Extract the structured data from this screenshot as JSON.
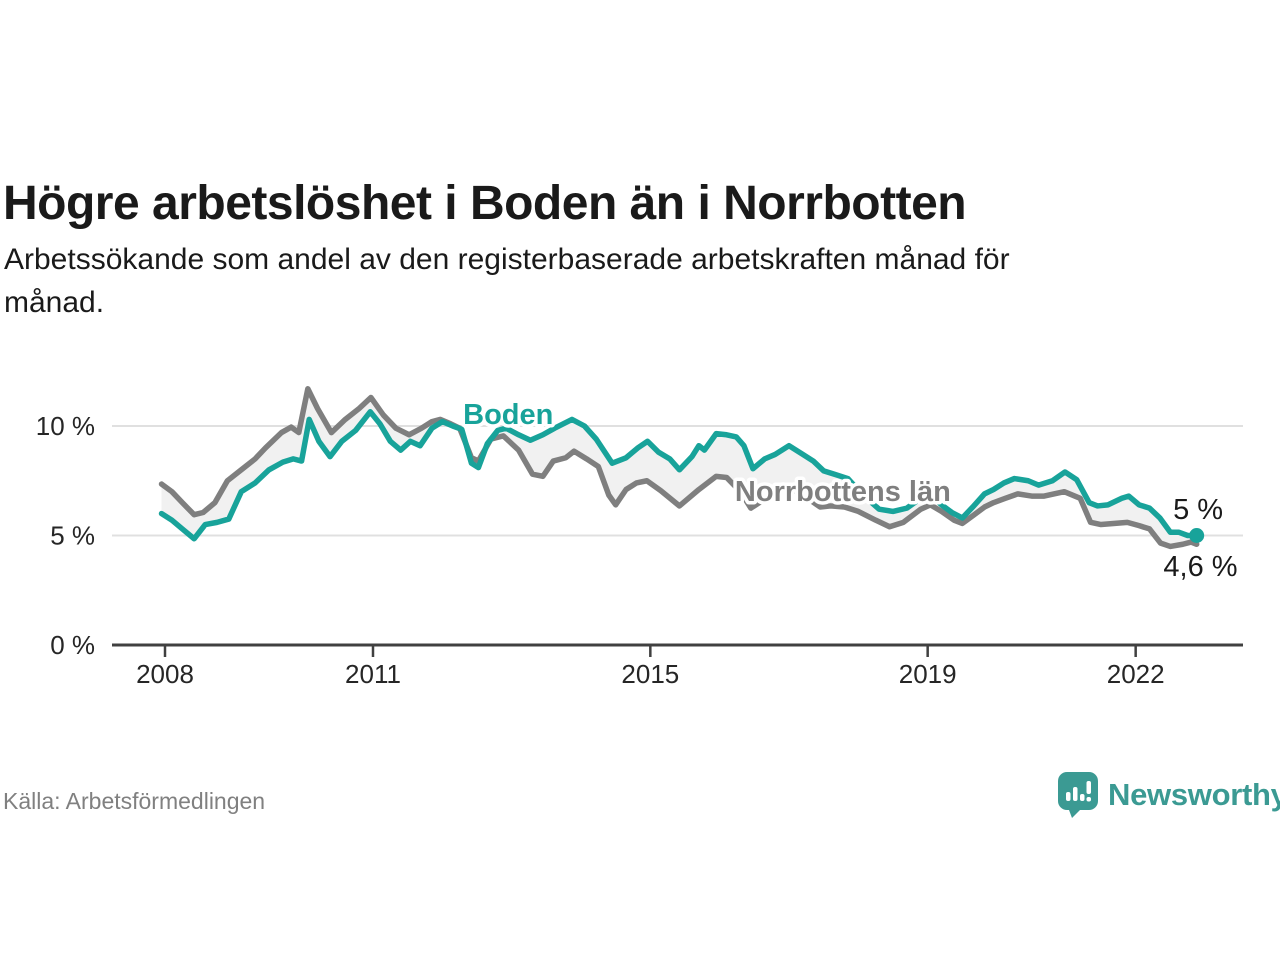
{
  "title": "Högre arbetslöshet i Boden än i Norrbotten",
  "subtitle": {
    "line1": "Arbetssökande som andel av den registerbaserade arbetskraften månad för",
    "line2": "månad."
  },
  "source": "Källa: Arbetsförmedlingen",
  "logo": {
    "text": "Newsworthy",
    "icon": "newsworthy-speech-bubble-bars-icon",
    "color": "#3b9a93"
  },
  "colors": {
    "boden_line": "#18a39a",
    "norrbotten_line": "#7f7f7f",
    "band_fill": "#f1f1f1",
    "gridline": "#e0e0e0",
    "axis": "#404040",
    "text": "#1a1a1a",
    "muted_text": "#808080"
  },
  "chart_data": {
    "type": "line",
    "title": "Högre arbetslöshet i Boden än i Norrbotten",
    "subtitle": "Arbetssökande som andel av den registerbaserade arbetskraften månad för månad.",
    "x_unit": "decimal_year",
    "xlim": [
      2007.9,
      2023.2
    ],
    "ylim": [
      0,
      12
    ],
    "grid": "horizontal",
    "legend_position": "inline-labels",
    "yticks": [
      {
        "value": 0,
        "label": "0 %"
      },
      {
        "value": 5,
        "label": "5 %"
      },
      {
        "value": 10,
        "label": "10 %"
      }
    ],
    "xticks": [
      {
        "value": 2008,
        "label": "2008"
      },
      {
        "value": 2011,
        "label": "2011"
      },
      {
        "value": 2015,
        "label": "2015"
      },
      {
        "value": 2019,
        "label": "2019"
      },
      {
        "value": 2022,
        "label": "2022"
      }
    ],
    "annotations": [
      {
        "text": "Boden",
        "year": 2012.3,
        "value": 10.09,
        "class": "label-boden",
        "name": "series-label-boden"
      },
      {
        "text": "Norrbottens län",
        "year": 2016.22,
        "value": 6.57,
        "class": "label-norrbotten",
        "name": "series-label-norrbotten"
      },
      {
        "text": "5 %",
        "year": 2022.54,
        "value": 5.75,
        "class": "label-end",
        "name": "end-value-label-boden"
      },
      {
        "text": "4,6 %",
        "year": 2022.4,
        "value": 3.15,
        "class": "label-end",
        "name": "end-value-label-norrbotten"
      }
    ],
    "end_dot": {
      "series": "Boden",
      "year": 2022.88,
      "value": 5.0,
      "color": "#18a39a",
      "radius": 7.5
    },
    "series": [
      {
        "name": "Boden",
        "color": "#18a39a",
        "end_value_label": "5 %",
        "points": [
          [
            2007.95,
            6.0
          ],
          [
            2008.1,
            5.7
          ],
          [
            2008.25,
            5.3
          ],
          [
            2008.42,
            4.85
          ],
          [
            2008.58,
            5.5
          ],
          [
            2008.75,
            5.6
          ],
          [
            2008.92,
            5.75
          ],
          [
            2009.1,
            7.0
          ],
          [
            2009.3,
            7.4
          ],
          [
            2009.5,
            8.0
          ],
          [
            2009.7,
            8.35
          ],
          [
            2009.85,
            8.5
          ],
          [
            2009.97,
            8.4
          ],
          [
            2010.08,
            10.3
          ],
          [
            2010.22,
            9.3
          ],
          [
            2010.38,
            8.6
          ],
          [
            2010.55,
            9.3
          ],
          [
            2010.75,
            9.8
          ],
          [
            2010.96,
            10.65
          ],
          [
            2011.1,
            10.1
          ],
          [
            2011.25,
            9.3
          ],
          [
            2011.4,
            8.9
          ],
          [
            2011.54,
            9.3
          ],
          [
            2011.68,
            9.1
          ],
          [
            2011.85,
            9.9
          ],
          [
            2012.0,
            10.2
          ],
          [
            2012.15,
            10.0
          ],
          [
            2012.28,
            9.85
          ],
          [
            2012.42,
            8.3
          ],
          [
            2012.52,
            8.1
          ],
          [
            2012.65,
            9.2
          ],
          [
            2012.8,
            9.8
          ],
          [
            2012.92,
            9.9
          ],
          [
            2013.1,
            9.6
          ],
          [
            2013.27,
            9.35
          ],
          [
            2013.45,
            9.6
          ],
          [
            2013.62,
            9.9
          ],
          [
            2013.87,
            10.3
          ],
          [
            2014.05,
            10.0
          ],
          [
            2014.22,
            9.4
          ],
          [
            2014.45,
            8.3
          ],
          [
            2014.65,
            8.55
          ],
          [
            2014.82,
            9.0
          ],
          [
            2014.96,
            9.3
          ],
          [
            2015.12,
            8.8
          ],
          [
            2015.28,
            8.5
          ],
          [
            2015.42,
            8.0
          ],
          [
            2015.6,
            8.6
          ],
          [
            2015.7,
            9.1
          ],
          [
            2015.78,
            8.9
          ],
          [
            2015.95,
            9.65
          ],
          [
            2016.1,
            9.6
          ],
          [
            2016.24,
            9.5
          ],
          [
            2016.35,
            9.1
          ],
          [
            2016.48,
            8.05
          ],
          [
            2016.65,
            8.5
          ],
          [
            2016.8,
            8.7
          ],
          [
            2017.0,
            9.1
          ],
          [
            2017.2,
            8.7
          ],
          [
            2017.35,
            8.4
          ],
          [
            2017.5,
            7.95
          ],
          [
            2017.65,
            7.8
          ],
          [
            2017.85,
            7.6
          ],
          [
            2018.05,
            6.9
          ],
          [
            2018.3,
            6.2
          ],
          [
            2018.5,
            6.1
          ],
          [
            2018.7,
            6.25
          ],
          [
            2018.9,
            6.7
          ],
          [
            2019.04,
            6.85
          ],
          [
            2019.2,
            6.4
          ],
          [
            2019.35,
            6.05
          ],
          [
            2019.5,
            5.8
          ],
          [
            2019.65,
            6.3
          ],
          [
            2019.82,
            6.9
          ],
          [
            2019.95,
            7.1
          ],
          [
            2020.1,
            7.4
          ],
          [
            2020.25,
            7.6
          ],
          [
            2020.45,
            7.5
          ],
          [
            2020.6,
            7.3
          ],
          [
            2020.8,
            7.5
          ],
          [
            2020.98,
            7.9
          ],
          [
            2021.15,
            7.55
          ],
          [
            2021.33,
            6.5
          ],
          [
            2021.45,
            6.35
          ],
          [
            2021.6,
            6.4
          ],
          [
            2021.8,
            6.7
          ],
          [
            2021.9,
            6.8
          ],
          [
            2022.05,
            6.4
          ],
          [
            2022.2,
            6.25
          ],
          [
            2022.35,
            5.8
          ],
          [
            2022.5,
            5.15
          ],
          [
            2022.62,
            5.15
          ],
          [
            2022.75,
            5.0
          ],
          [
            2022.88,
            5.0
          ]
        ]
      },
      {
        "name": "Norrbottens län",
        "color": "#7f7f7f",
        "end_value_label": "4,6 %",
        "points": [
          [
            2007.95,
            7.35
          ],
          [
            2008.1,
            7.0
          ],
          [
            2008.25,
            6.5
          ],
          [
            2008.42,
            5.95
          ],
          [
            2008.55,
            6.05
          ],
          [
            2008.72,
            6.5
          ],
          [
            2008.9,
            7.5
          ],
          [
            2009.1,
            8.0
          ],
          [
            2009.3,
            8.5
          ],
          [
            2009.45,
            9.0
          ],
          [
            2009.68,
            9.7
          ],
          [
            2009.82,
            9.95
          ],
          [
            2009.93,
            9.7
          ],
          [
            2010.06,
            11.7
          ],
          [
            2010.2,
            10.8
          ],
          [
            2010.4,
            9.7
          ],
          [
            2010.6,
            10.3
          ],
          [
            2010.8,
            10.8
          ],
          [
            2010.97,
            11.3
          ],
          [
            2011.15,
            10.5
          ],
          [
            2011.33,
            9.9
          ],
          [
            2011.52,
            9.6
          ],
          [
            2011.7,
            9.9
          ],
          [
            2011.85,
            10.2
          ],
          [
            2011.97,
            10.3
          ],
          [
            2012.12,
            10.1
          ],
          [
            2012.25,
            9.9
          ],
          [
            2012.42,
            8.55
          ],
          [
            2012.52,
            8.4
          ],
          [
            2012.7,
            9.4
          ],
          [
            2012.88,
            9.55
          ],
          [
            2013.1,
            8.9
          ],
          [
            2013.3,
            7.8
          ],
          [
            2013.45,
            7.7
          ],
          [
            2013.6,
            8.4
          ],
          [
            2013.78,
            8.55
          ],
          [
            2013.9,
            8.85
          ],
          [
            2014.08,
            8.5
          ],
          [
            2014.25,
            8.15
          ],
          [
            2014.4,
            6.85
          ],
          [
            2014.5,
            6.4
          ],
          [
            2014.65,
            7.1
          ],
          [
            2014.8,
            7.4
          ],
          [
            2014.95,
            7.5
          ],
          [
            2015.15,
            7.05
          ],
          [
            2015.42,
            6.35
          ],
          [
            2015.7,
            7.1
          ],
          [
            2015.95,
            7.7
          ],
          [
            2016.1,
            7.65
          ],
          [
            2016.3,
            7.0
          ],
          [
            2016.45,
            6.25
          ],
          [
            2016.62,
            6.6
          ],
          [
            2016.8,
            7.0
          ],
          [
            2017.0,
            7.2
          ],
          [
            2017.2,
            6.85
          ],
          [
            2017.45,
            6.3
          ],
          [
            2017.6,
            6.35
          ],
          [
            2017.8,
            6.3
          ],
          [
            2018.0,
            6.1
          ],
          [
            2018.25,
            5.7
          ],
          [
            2018.45,
            5.4
          ],
          [
            2018.65,
            5.6
          ],
          [
            2018.9,
            6.2
          ],
          [
            2019.04,
            6.4
          ],
          [
            2019.2,
            6.1
          ],
          [
            2019.38,
            5.7
          ],
          [
            2019.5,
            5.55
          ],
          [
            2019.65,
            5.9
          ],
          [
            2019.82,
            6.3
          ],
          [
            2019.95,
            6.5
          ],
          [
            2020.12,
            6.7
          ],
          [
            2020.3,
            6.9
          ],
          [
            2020.5,
            6.8
          ],
          [
            2020.68,
            6.8
          ],
          [
            2020.82,
            6.9
          ],
          [
            2020.97,
            7.0
          ],
          [
            2021.2,
            6.7
          ],
          [
            2021.35,
            5.6
          ],
          [
            2021.5,
            5.5
          ],
          [
            2021.68,
            5.55
          ],
          [
            2021.88,
            5.6
          ],
          [
            2022.05,
            5.45
          ],
          [
            2022.2,
            5.3
          ],
          [
            2022.36,
            4.65
          ],
          [
            2022.5,
            4.5
          ],
          [
            2022.68,
            4.6
          ],
          [
            2022.8,
            4.7
          ],
          [
            2022.88,
            4.6
          ]
        ]
      }
    ]
  }
}
